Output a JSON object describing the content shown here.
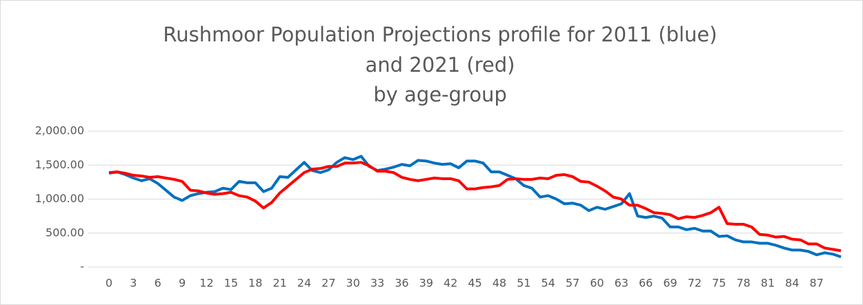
{
  "chart_data": {
    "type": "line",
    "title": [
      "Rushmoor Population Projections profile for 2011 (blue)",
      "and 2021 (red)",
      "by age-group"
    ],
    "categories": [
      0,
      null,
      null,
      3,
      null,
      null,
      6,
      null,
      null,
      9,
      null,
      null,
      12,
      null,
      null,
      15,
      null,
      null,
      18,
      null,
      null,
      21,
      null,
      null,
      24,
      null,
      null,
      27,
      null,
      null,
      30,
      null,
      null,
      33,
      null,
      null,
      36,
      null,
      null,
      39,
      null,
      null,
      42,
      null,
      null,
      45,
      null,
      null,
      48,
      null,
      null,
      51,
      null,
      null,
      54,
      null,
      null,
      57,
      null,
      null,
      60,
      null,
      null,
      63,
      null,
      null,
      66,
      null,
      null,
      69,
      null,
      null,
      72,
      null,
      null,
      75,
      null,
      null,
      78,
      null,
      null,
      81,
      null,
      null,
      84,
      null,
      null,
      87,
      null,
      null,
      null
    ],
    "series": [
      {
        "color": "#0070c0",
        "values": [
          1380,
          1400,
          1360,
          1310,
          1270,
          1300,
          1230,
          1130,
          1030,
          980,
          1050,
          1080,
          1100,
          1110,
          1160,
          1140,
          1260,
          1240,
          1240,
          1110,
          1160,
          1330,
          1320,
          1430,
          1540,
          1420,
          1390,
          1430,
          1540,
          1610,
          1580,
          1630,
          1480,
          1420,
          1440,
          1470,
          1510,
          1490,
          1570,
          1560,
          1530,
          1510,
          1520,
          1460,
          1560,
          1560,
          1530,
          1400,
          1400,
          1350,
          1300,
          1200,
          1160,
          1030,
          1050,
          1000,
          930,
          940,
          910,
          830,
          880,
          850,
          890,
          930,
          1080,
          750,
          730,
          750,
          720,
          590,
          590,
          550,
          570,
          530,
          530,
          450,
          460,
          400,
          370,
          370,
          350,
          350,
          320,
          280,
          250,
          250,
          230,
          180,
          210,
          190,
          150
        ]
      },
      {
        "color": "#ff0000",
        "values": [
          1390,
          1400,
          1380,
          1350,
          1340,
          1320,
          1330,
          1310,
          1290,
          1260,
          1130,
          1120,
          1090,
          1070,
          1080,
          1100,
          1050,
          1030,
          970,
          870,
          950,
          1090,
          1190,
          1290,
          1390,
          1440,
          1450,
          1480,
          1480,
          1530,
          1530,
          1540,
          1490,
          1410,
          1410,
          1390,
          1320,
          1290,
          1270,
          1290,
          1310,
          1300,
          1300,
          1270,
          1150,
          1150,
          1170,
          1180,
          1200,
          1290,
          1300,
          1290,
          1290,
          1310,
          1300,
          1350,
          1360,
          1330,
          1260,
          1250,
          1190,
          1120,
          1030,
          1000,
          910,
          910,
          860,
          800,
          790,
          770,
          710,
          740,
          730,
          760,
          800,
          880,
          640,
          630,
          630,
          590,
          480,
          470,
          440,
          450,
          410,
          400,
          340,
          340,
          280,
          260,
          240
        ]
      }
    ],
    "ylim": [
      0,
      2000
    ],
    "yticks": [
      {
        "value": 0,
        "label": "-"
      },
      {
        "value": 500,
        "label": "500.00"
      },
      {
        "value": 1000,
        "label": "1,000.00"
      },
      {
        "value": 1500,
        "label": "1,500.00"
      },
      {
        "value": 2000,
        "label": "2,000.00"
      }
    ],
    "grid": true
  }
}
